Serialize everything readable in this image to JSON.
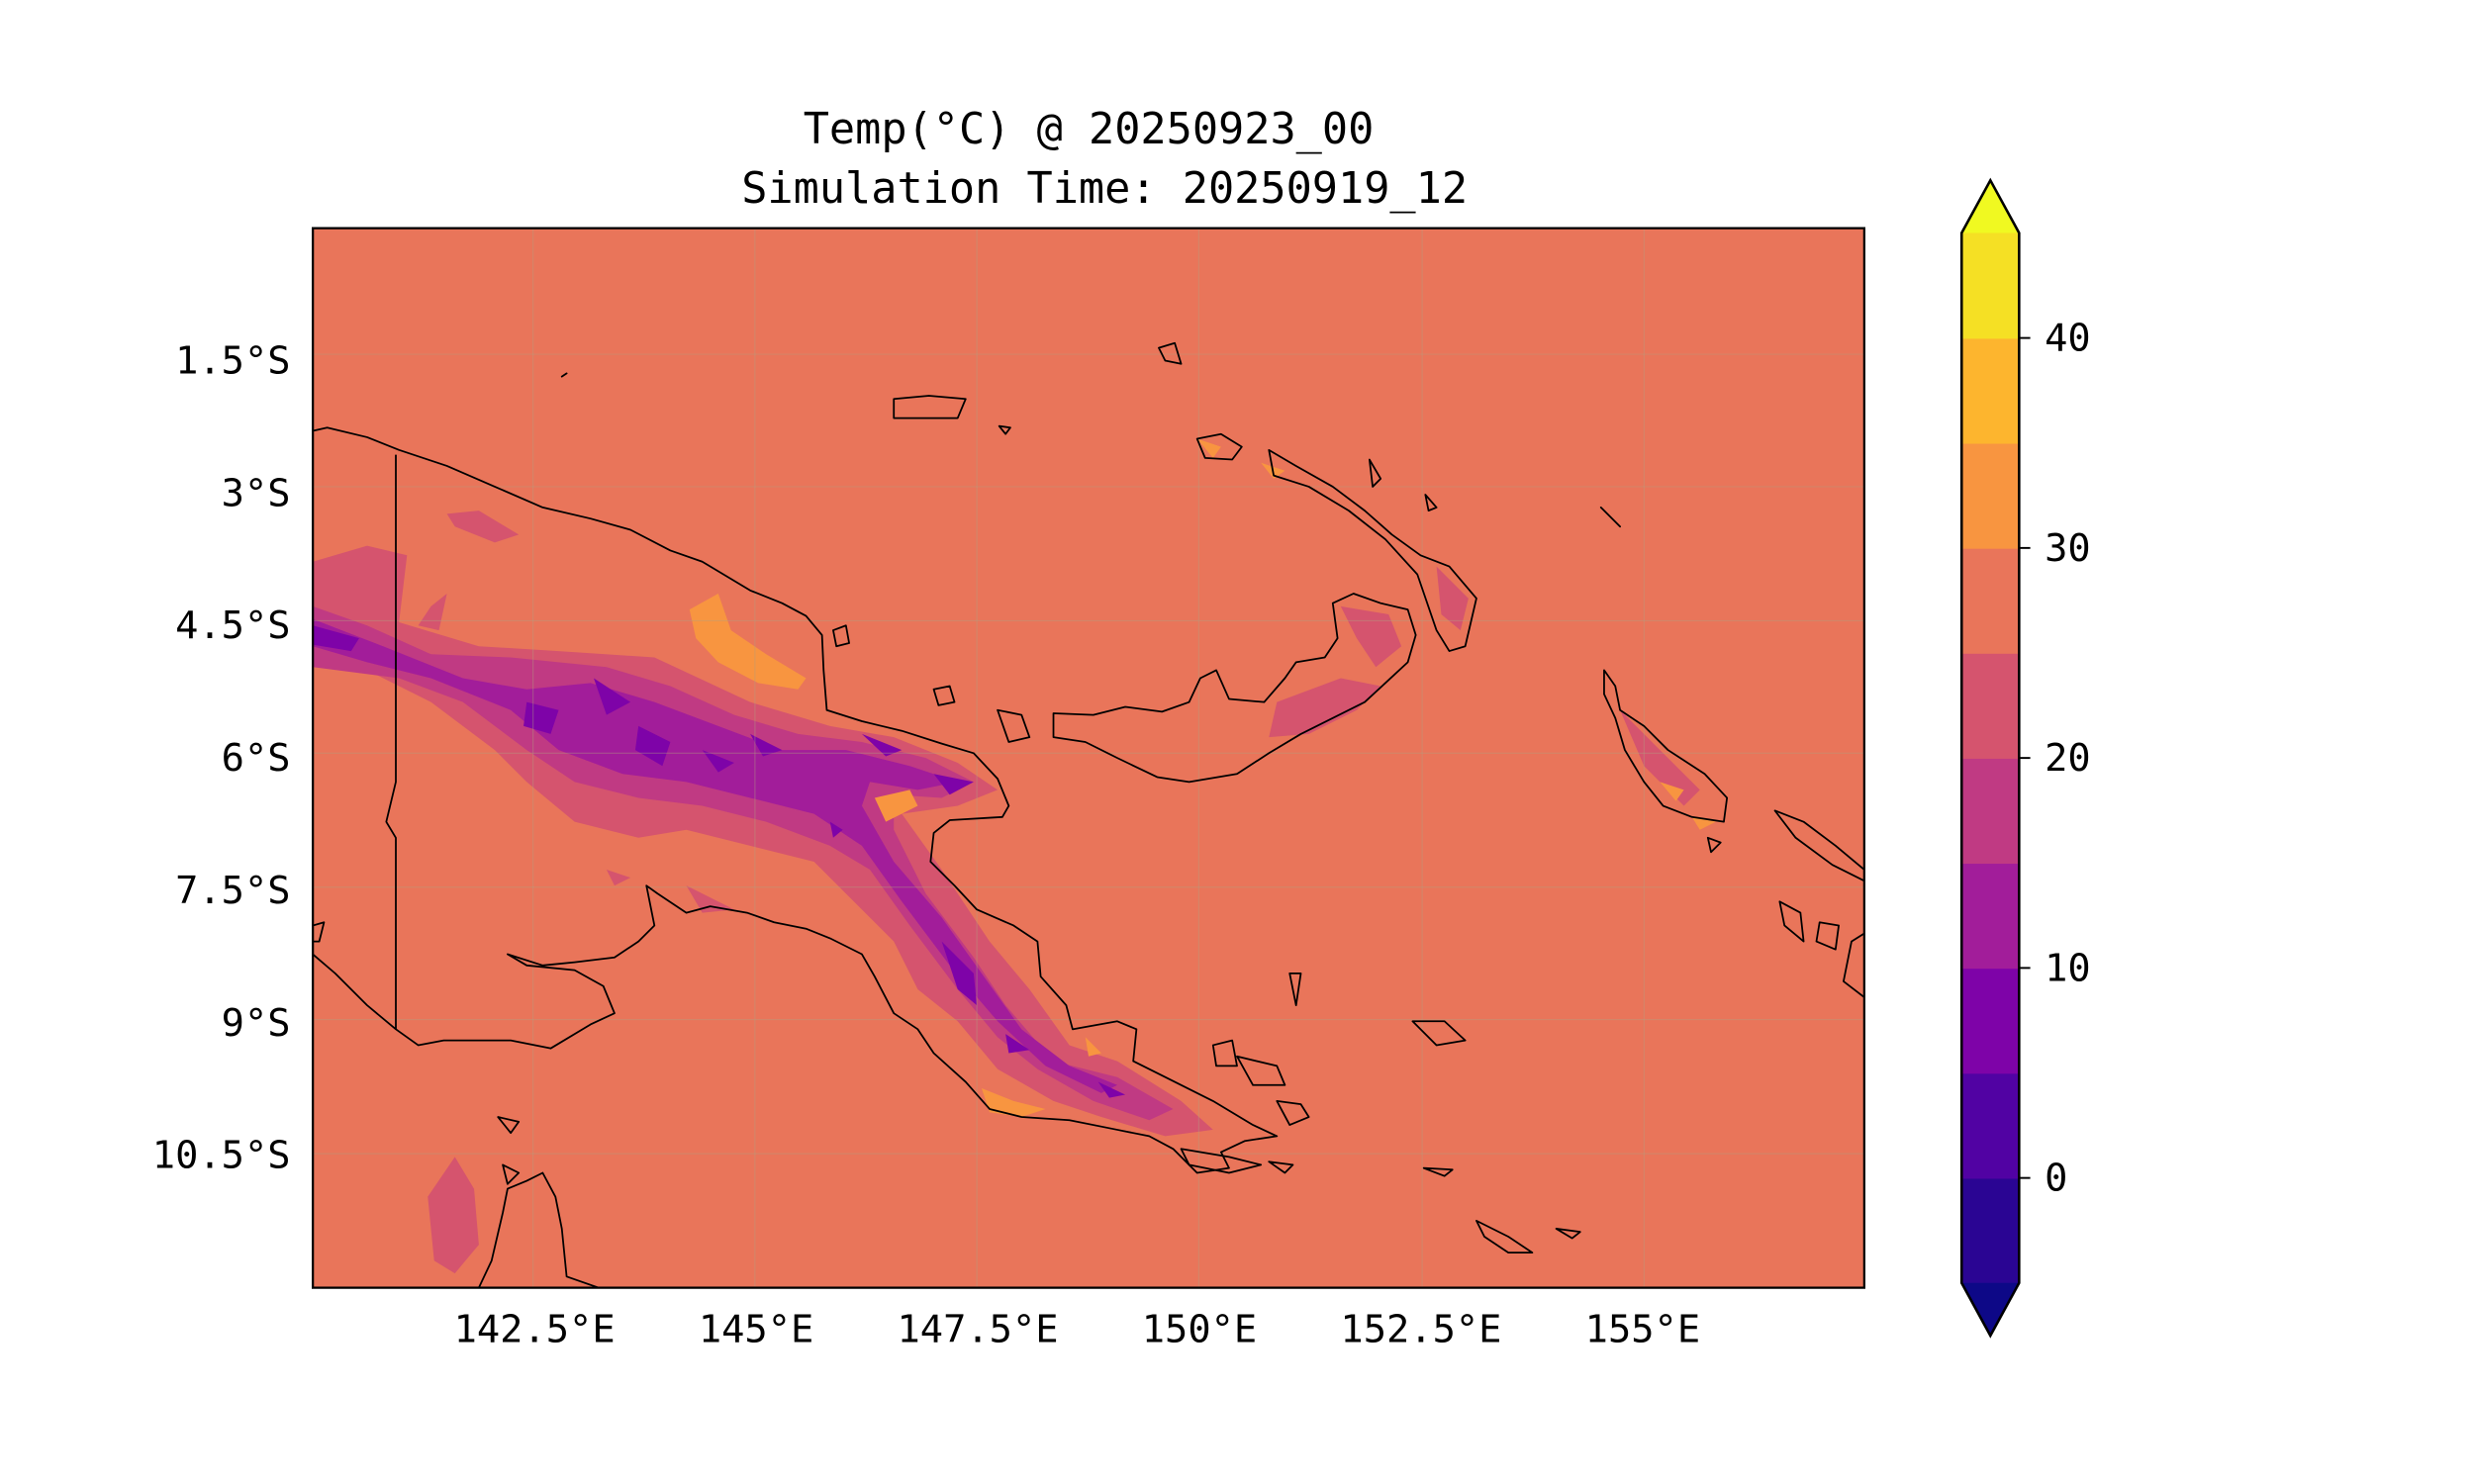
{
  "chart_data": {
    "type": "heatmap",
    "subtype": "filled-contour-map",
    "title": "Temp(°C) @ 20250923_00",
    "subtitle": "Simulation Time: 20250919_12",
    "variable": "Temp(°C)",
    "lon_range": [
      140.0,
      157.5
    ],
    "lat_range": [
      -12.0,
      0.0
    ],
    "xticks": [
      142.5,
      145,
      147.5,
      150,
      152.5,
      155
    ],
    "xtick_labels": [
      "142.5°E",
      "145°E",
      "147.5°E",
      "150°E",
      "152.5°E",
      "155°E"
    ],
    "yticks": [
      -1.5,
      -3,
      -4.5,
      -6,
      -7.5,
      -9,
      -10.5
    ],
    "ytick_labels": [
      "1.5°S",
      "3°S",
      "4.5°S",
      "6°S",
      "7.5°S",
      "9°S",
      "10.5°S"
    ],
    "grid": true,
    "colorbar": {
      "position": "right",
      "extend": "both",
      "levels": [
        -5,
        0,
        5,
        10,
        15,
        20,
        25,
        30,
        35,
        40,
        45
      ],
      "ticks": [
        0,
        10,
        20,
        30,
        40
      ],
      "tick_labels": [
        "0",
        "10",
        "20",
        "30",
        "40"
      ],
      "under_color": "#0d0887",
      "over_color": "#f0f921",
      "colors": [
        "#2a0593",
        "#5102a3",
        "#7e03a8",
        "#a21d9a",
        "#c03a83",
        "#d5546e",
        "#e9755a",
        "#f89540",
        "#fdb52e",
        "#f5e024"
      ]
    },
    "field_summary": {
      "ocean_band": "25-30",
      "highlands_min_band": "5-10",
      "lowland_max_band": "30-35"
    }
  }
}
